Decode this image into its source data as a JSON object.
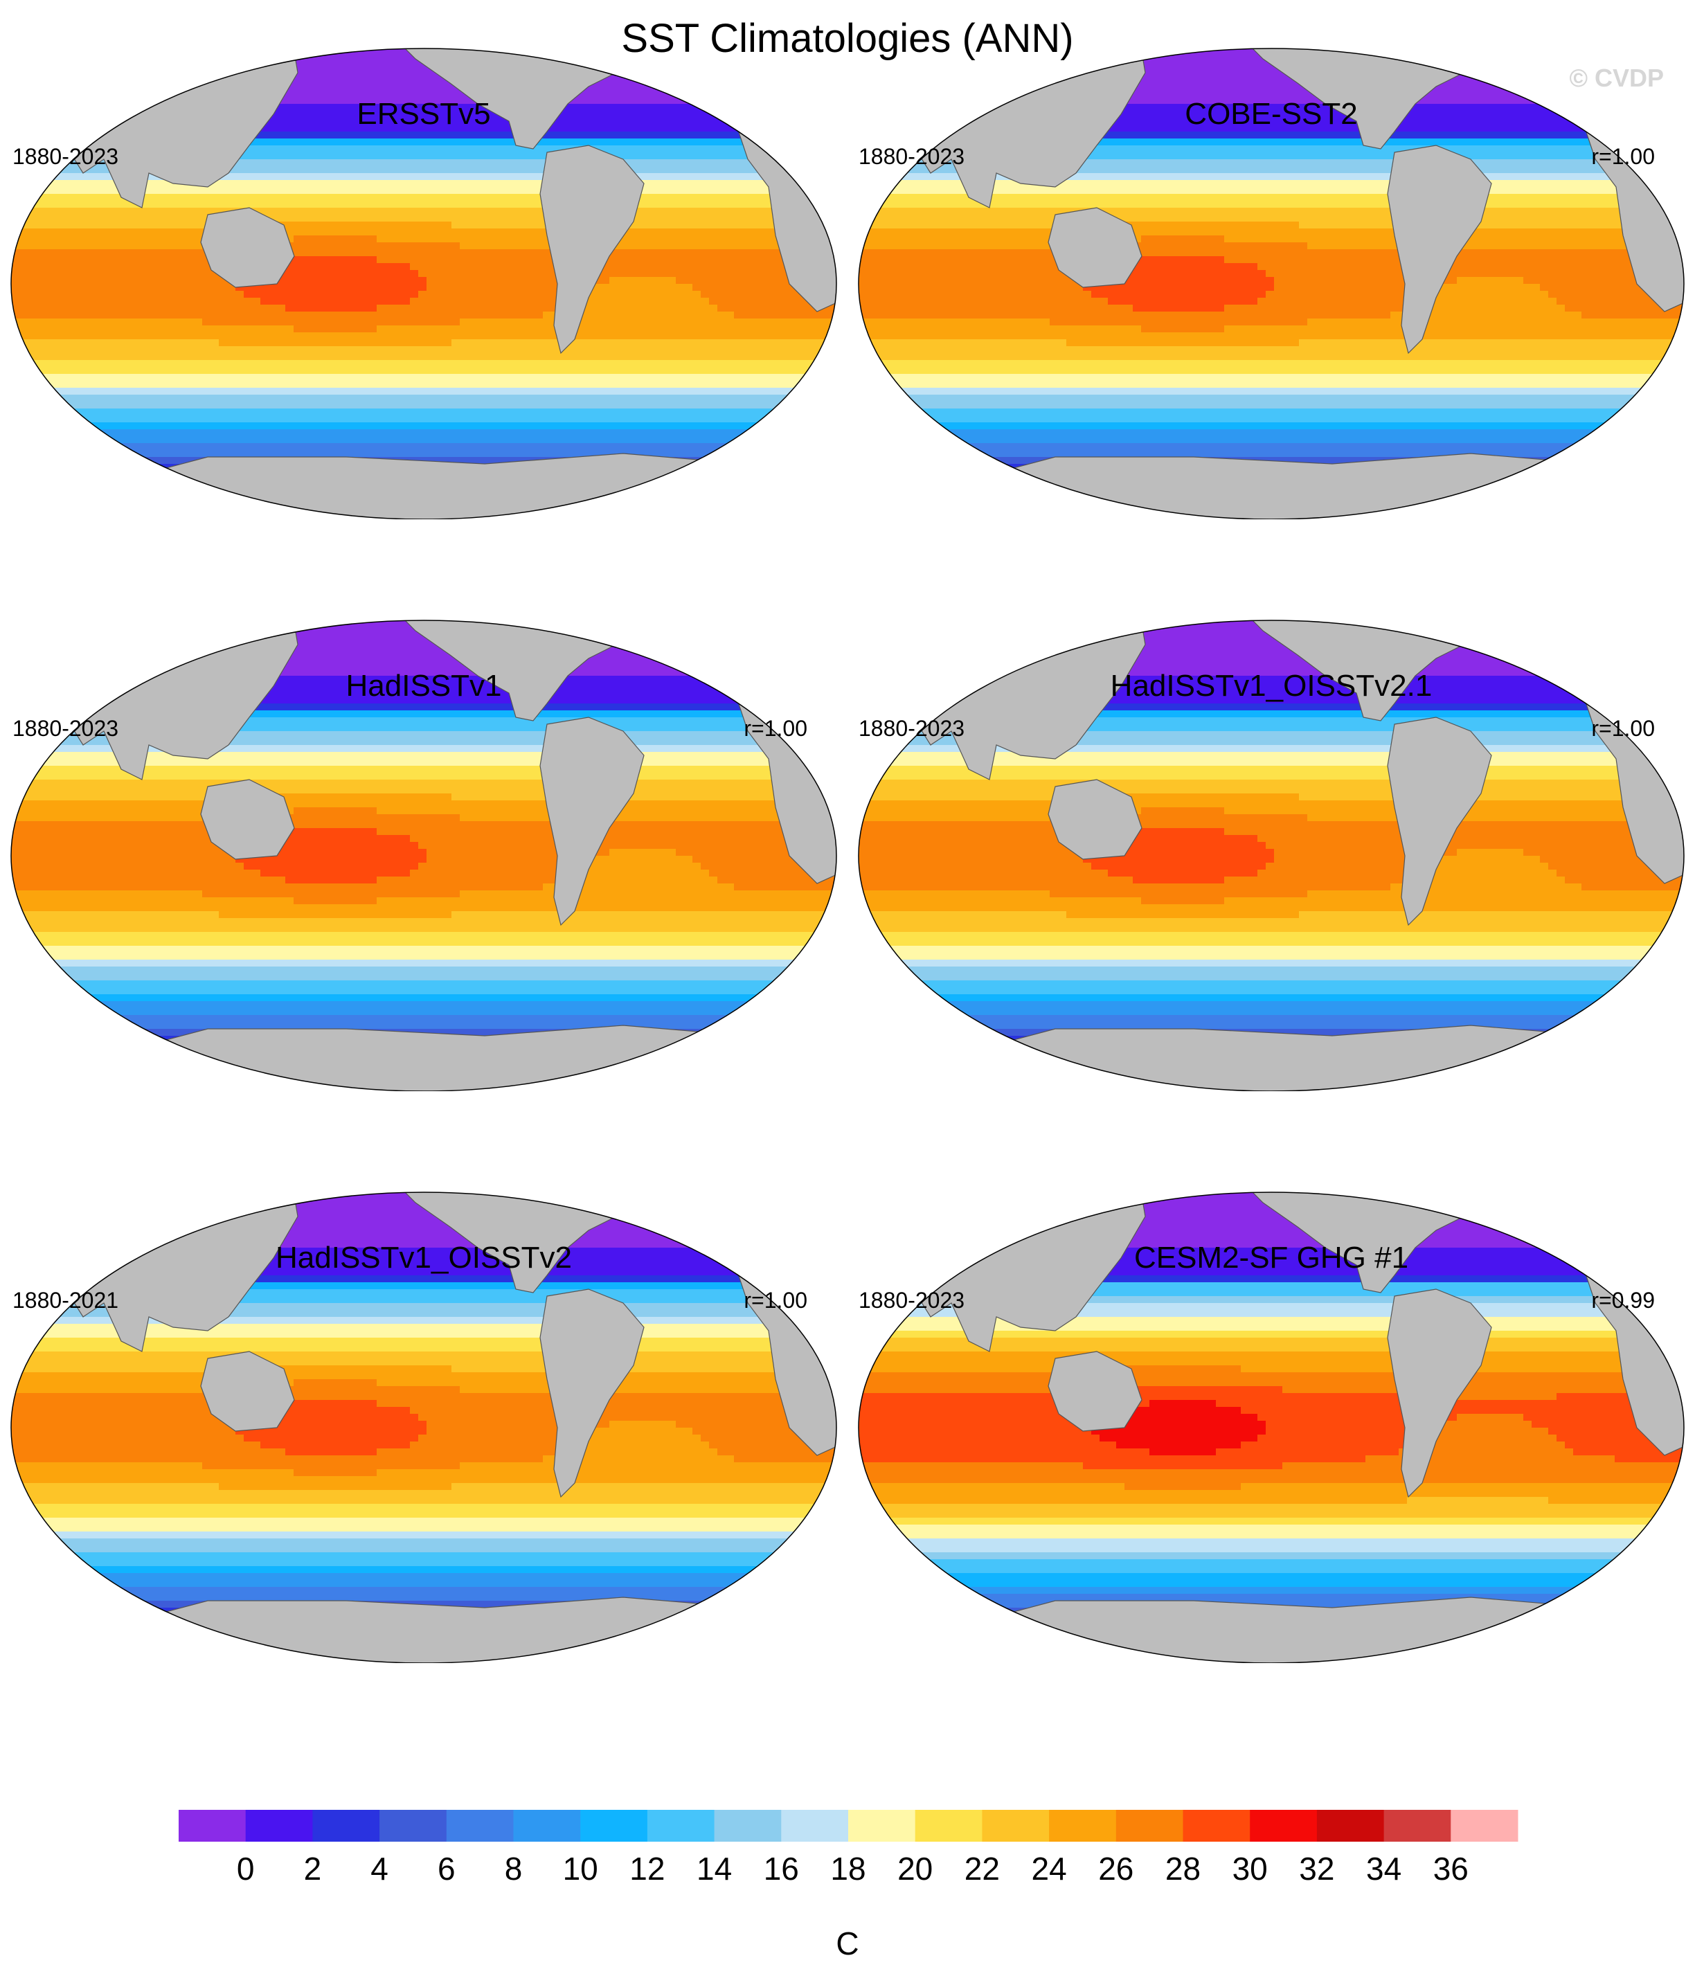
{
  "title": "SST Climatologies (ANN)",
  "watermark": "© CVDP",
  "panels": [
    {
      "name": "ERSSTv5",
      "period": "1880-2023",
      "corr": "",
      "intensity": 0,
      "land_mask_style": "blocky"
    },
    {
      "name": "COBE-SST2",
      "period": "1880-2023",
      "corr": "r=1.00",
      "intensity": 0,
      "land_mask_style": "smooth"
    },
    {
      "name": "HadISSTv1",
      "period": "1880-2023",
      "corr": "r=1.00",
      "intensity": 0,
      "land_mask_style": "smooth"
    },
    {
      "name": "HadISSTv1_OISSTv2.1",
      "period": "1880-2023",
      "corr": "r=1.00",
      "intensity": 0,
      "land_mask_style": "smooth"
    },
    {
      "name": "HadISSTv1_OISSTv2",
      "period": "1880-2021",
      "corr": "r=1.00",
      "intensity": 0,
      "land_mask_style": "smooth"
    },
    {
      "name": "CESM2-SF GHG #1",
      "period": "1880-2023",
      "corr": "r=0.99",
      "intensity": 1,
      "land_mask_style": "smooth"
    }
  ],
  "colorbar": {
    "unit": "C",
    "tick_labels": [
      "0",
      "2",
      "4",
      "6",
      "8",
      "10",
      "12",
      "14",
      "16",
      "18",
      "20",
      "22",
      "24",
      "26",
      "28",
      "30",
      "32",
      "34",
      "36"
    ],
    "colors": [
      "#8a2be8",
      "#4a14f0",
      "#2a33e0",
      "#3e5cd8",
      "#3f7fe8",
      "#2e98f2",
      "#10b4ff",
      "#46c4fa",
      "#8ccdee",
      "#bfe2f6",
      "#fff8a8",
      "#fde24a",
      "#fdc428",
      "#fca40c",
      "#fa8208",
      "#ff4a0c",
      "#f50a08",
      "#cc0a0a",
      "#d23c3c",
      "#ffb0b0"
    ]
  },
  "land_color": "#bdbdbd"
}
